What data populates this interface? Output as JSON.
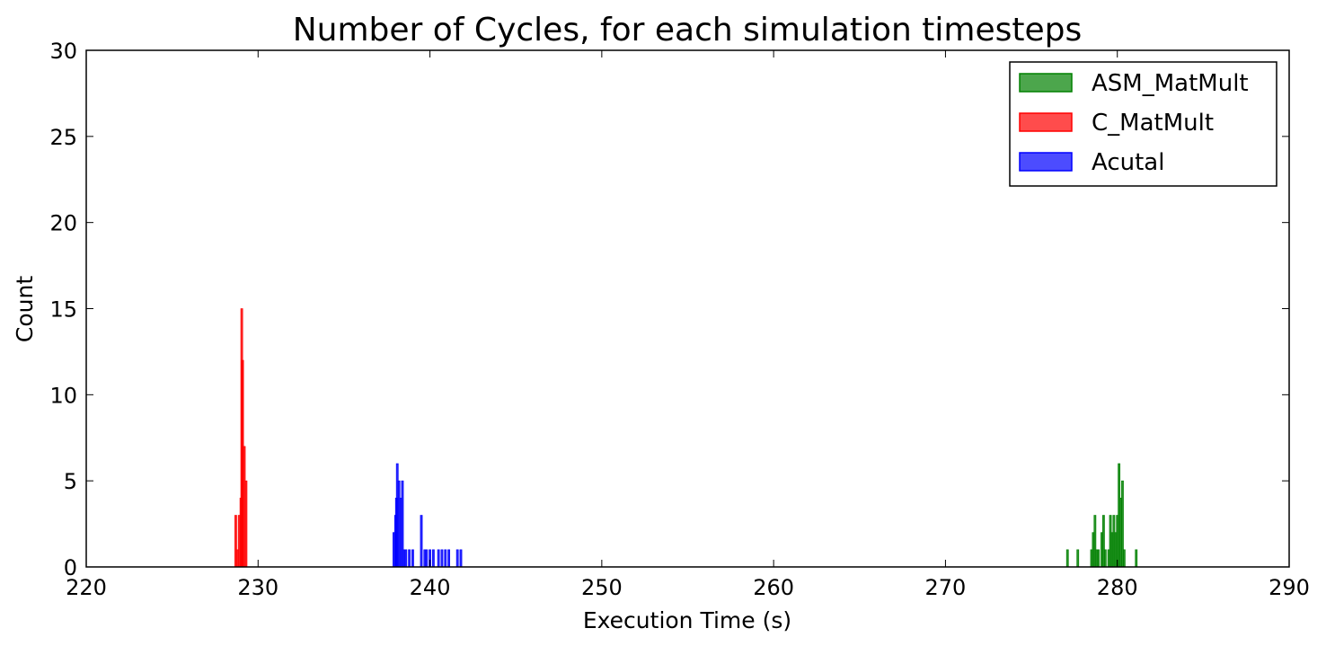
{
  "chart_data": {
    "type": "histogram",
    "title": "Number of Cycles, for each simulation timesteps",
    "xlabel": "Execution Time (s)",
    "ylabel": "Count",
    "xlim": [
      220,
      290
    ],
    "ylim": [
      0,
      30
    ],
    "xticks": [
      220,
      230,
      240,
      250,
      260,
      270,
      280,
      290
    ],
    "yticks": [
      0,
      5,
      10,
      15,
      20,
      25,
      30
    ],
    "grid": false,
    "legend_position": "top-right",
    "series": [
      {
        "name": "ASM_MatMult",
        "color": "#008000",
        "bins": [
          {
            "x": 277.1,
            "count": 1
          },
          {
            "x": 277.7,
            "count": 1
          },
          {
            "x": 278.5,
            "count": 1
          },
          {
            "x": 278.6,
            "count": 2
          },
          {
            "x": 278.7,
            "count": 3
          },
          {
            "x": 278.8,
            "count": 1
          },
          {
            "x": 278.9,
            "count": 1
          },
          {
            "x": 279.1,
            "count": 2
          },
          {
            "x": 279.2,
            "count": 3
          },
          {
            "x": 279.3,
            "count": 1
          },
          {
            "x": 279.5,
            "count": 1
          },
          {
            "x": 279.6,
            "count": 3
          },
          {
            "x": 279.7,
            "count": 2
          },
          {
            "x": 279.8,
            "count": 3
          },
          {
            "x": 279.9,
            "count": 2
          },
          {
            "x": 280.0,
            "count": 3
          },
          {
            "x": 280.1,
            "count": 6
          },
          {
            "x": 280.2,
            "count": 4
          },
          {
            "x": 280.3,
            "count": 5
          },
          {
            "x": 280.4,
            "count": 1
          },
          {
            "x": 281.1,
            "count": 1
          }
        ]
      },
      {
        "name": "C_MatMult",
        "color": "#ff0000",
        "bins": [
          {
            "x": 228.7,
            "count": 3
          },
          {
            "x": 228.8,
            "count": 1
          },
          {
            "x": 228.9,
            "count": 3
          },
          {
            "x": 229.0,
            "count": 4
          },
          {
            "x": 229.05,
            "count": 15
          },
          {
            "x": 229.1,
            "count": 12
          },
          {
            "x": 229.2,
            "count": 7
          },
          {
            "x": 229.3,
            "count": 5
          }
        ]
      },
      {
        "name": "Acutal",
        "color": "#0000ff",
        "bins": [
          {
            "x": 237.9,
            "count": 2
          },
          {
            "x": 238.0,
            "count": 3
          },
          {
            "x": 238.05,
            "count": 4
          },
          {
            "x": 238.1,
            "count": 6
          },
          {
            "x": 238.2,
            "count": 5
          },
          {
            "x": 238.3,
            "count": 4
          },
          {
            "x": 238.4,
            "count": 5
          },
          {
            "x": 238.5,
            "count": 1
          },
          {
            "x": 238.6,
            "count": 1
          },
          {
            "x": 238.8,
            "count": 1
          },
          {
            "x": 239.0,
            "count": 1
          },
          {
            "x": 239.5,
            "count": 3
          },
          {
            "x": 239.7,
            "count": 1
          },
          {
            "x": 239.8,
            "count": 1
          },
          {
            "x": 240.0,
            "count": 1
          },
          {
            "x": 240.2,
            "count": 1
          },
          {
            "x": 240.5,
            "count": 1
          },
          {
            "x": 240.7,
            "count": 1
          },
          {
            "x": 240.9,
            "count": 1
          },
          {
            "x": 241.1,
            "count": 1
          },
          {
            "x": 241.6,
            "count": 1
          },
          {
            "x": 241.8,
            "count": 1
          }
        ]
      }
    ]
  }
}
